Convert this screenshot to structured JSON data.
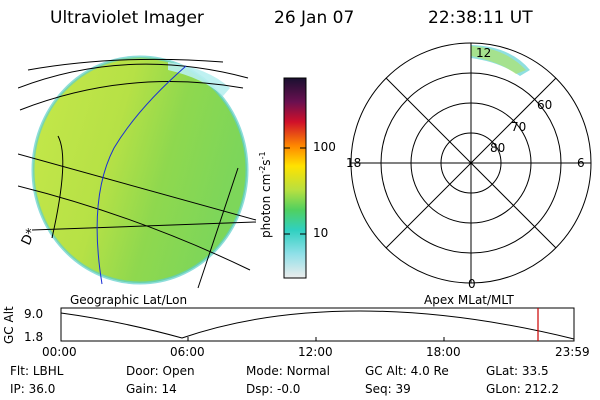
{
  "header": {
    "title": "Ultraviolet Imager",
    "date": "26 Jan 07",
    "time": "22:38:11 UT"
  },
  "colorbar": {
    "unit": "photon cm",
    "unit_sup1": "-2",
    "unit_s": "s",
    "unit_sup2": "-1",
    "ticks": [
      {
        "label": "100",
        "value": 100
      },
      {
        "label": "10",
        "value": 10
      }
    ]
  },
  "left_panel": {
    "label": "Geographic Lat/Lon",
    "edge_glyph": "D*"
  },
  "right_panel": {
    "label": "Apex  MLat/MLT",
    "mlt_labels": {
      "top": "12",
      "bottom": "0",
      "left": "18",
      "right": "6"
    },
    "mlat_labels": [
      "60",
      "70",
      "80"
    ]
  },
  "altitude_plot": {
    "ylabel": "GC Alt",
    "y_ticks": [
      "9.0",
      "1.8"
    ],
    "x_ticks": [
      "00:00",
      "06:00",
      "12:00",
      "18:00",
      "23:59"
    ],
    "marker_color": "#cc0000"
  },
  "footer": {
    "row1": [
      {
        "label": "Flt:",
        "value": "LBHL"
      },
      {
        "label": "Door:",
        "value": "Open"
      },
      {
        "label": "Mode:",
        "value": "Normal"
      },
      {
        "label": "GC Alt:",
        "value": "4.0 Re"
      },
      {
        "label": "GLat:",
        "value": "33.5"
      }
    ],
    "row2": [
      {
        "label": "IP:",
        "value": "36.0"
      },
      {
        "label": "Gain:",
        "value": "14"
      },
      {
        "label": "Dsp:",
        "value": "-0.0"
      },
      {
        "label": "Seq:",
        "value": "39"
      },
      {
        "label": "GLon:",
        "value": "212.2"
      }
    ]
  }
}
